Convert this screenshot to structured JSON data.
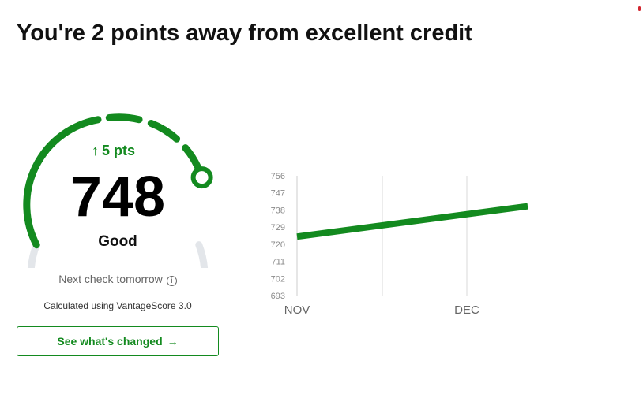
{
  "headline": "You're 2 points away from excellent credit",
  "score_card": {
    "change_arrow": "↑",
    "change_text": "5 pts",
    "score": "748",
    "rating": "Good",
    "score_range": [
      300,
      850
    ],
    "next_check": "Next check tomorrow",
    "info_icon": "info-icon",
    "calculation_note": "Calculated using VantageScore 3.0",
    "cta_label": "See what's changed",
    "cta_icon": "arrow-right-icon"
  },
  "colors": {
    "accent": "#138a1f",
    "gauge_track": "#e3e6ea",
    "alert_dot": "#d1252f"
  },
  "chart_data": {
    "type": "line",
    "x_ticks": [
      "NOV",
      "DEC"
    ],
    "y_ticks": [
      756,
      747,
      738,
      729,
      720,
      711,
      702,
      693
    ],
    "ylim": [
      693,
      756
    ],
    "grid": "vertical",
    "series": [
      {
        "points": [
          {
            "x": "start",
            "y": 724
          },
          {
            "x": "end",
            "y": 740
          }
        ]
      }
    ]
  }
}
